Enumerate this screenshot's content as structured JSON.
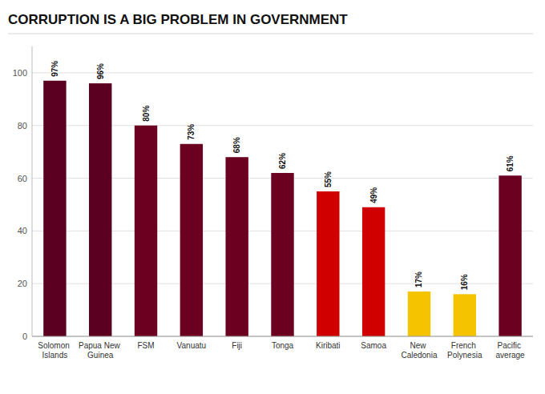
{
  "chart_data": {
    "type": "bar",
    "title": "CORRUPTION IS A BIG PROBLEM IN GOVERNMENT",
    "categories": [
      "Solomon Islands",
      "Papua New\nGuinea",
      "FSM",
      "Vanuatu",
      "Fiji",
      "Tonga",
      "Kiribati",
      "Samoa",
      "New Caledonia",
      "French Polynesia",
      "Pacific average"
    ],
    "values": [
      97,
      96,
      80,
      73,
      68,
      62,
      55,
      49,
      17,
      16,
      61
    ],
    "value_labels": [
      "97%",
      "96%",
      "80%",
      "73%",
      "68%",
      "62%",
      "55%",
      "49%",
      "17%",
      "16%",
      "61%"
    ],
    "colors": [
      "#5c0022",
      "#5c0022",
      "#6b0020",
      "#6b0020",
      "#6b0020",
      "#6b0020",
      "#d10000",
      "#d10000",
      "#f5c400",
      "#f5c400",
      "#6b0020"
    ],
    "ylim": [
      0,
      110
    ],
    "yticks": [
      0,
      20,
      40,
      60,
      80,
      100
    ],
    "grid": true,
    "data_labels": true
  }
}
